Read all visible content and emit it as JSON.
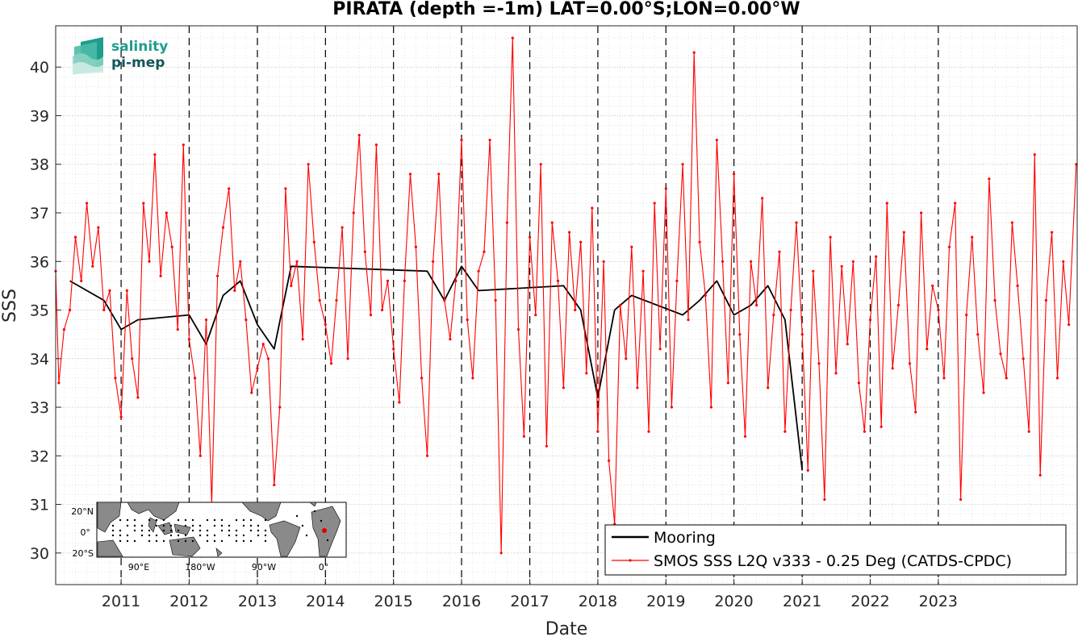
{
  "chart_data": {
    "type": "line",
    "title": "PIRATA (depth =-1m) LAT=0.00°S;LON=0.00°W",
    "xlabel": "Date",
    "ylabel": "SSS",
    "xlim": [
      "2010-01-15",
      "2025-01-15"
    ],
    "ylim": [
      29.35,
      40.85
    ],
    "y_ticks": [
      "30",
      "31",
      "32",
      "33",
      "34",
      "35",
      "36",
      "37",
      "38",
      "39",
      "40"
    ],
    "x_ticks": [
      "2011",
      "2012",
      "2013",
      "2014",
      "2015",
      "2016",
      "2017",
      "2018",
      "2019",
      "2020",
      "2021",
      "2022",
      "2023"
    ],
    "grid": true,
    "year_boundaries": "dashed black vertical lines at Jan 1 of each year 2011-2023",
    "legend_position": "bottom-right",
    "series": [
      {
        "name": "Mooring",
        "color": "#000000",
        "style": "line",
        "x": [
          "2010-04-01",
          "2010-07-01",
          "2010-10-01",
          "2011-01-01",
          "2011-04-01",
          "2012-01-01",
          "2012-04-01",
          "2012-07-01",
          "2012-10-01",
          "2013-01-01",
          "2013-04-01",
          "2013-07-01",
          "2015-07-01",
          "2015-10-01",
          "2016-01-01",
          "2016-04-01",
          "2017-07-01",
          "2017-10-01",
          "2018-01-01",
          "2018-04-01",
          "2018-07-01",
          "2019-04-01",
          "2019-07-01",
          "2019-10-01",
          "2020-01-01",
          "2020-04-01",
          "2020-07-01",
          "2020-10-01",
          "2021-01-01"
        ],
        "y": [
          35.6,
          35.4,
          35.2,
          34.6,
          34.8,
          34.9,
          34.3,
          35.3,
          35.6,
          34.7,
          34.2,
          35.9,
          35.8,
          35.2,
          35.9,
          35.4,
          35.5,
          35.0,
          33.2,
          35.0,
          35.3,
          34.9,
          35.2,
          35.6,
          34.9,
          35.1,
          35.5,
          34.8,
          31.7
        ]
      },
      {
        "name": "SMOS SSS L2Q v333 - 0.25 Deg (CATDS-CPDC)",
        "color": "#ff0000",
        "style": "line-with-dots",
        "x": [
          "2010-01-15",
          "2010-02-01",
          "2010-03-01",
          "2010-04-01",
          "2010-05-01",
          "2010-06-01",
          "2010-07-01",
          "2010-08-01",
          "2010-09-01",
          "2010-10-01",
          "2010-11-01",
          "2010-12-01",
          "2011-01-01",
          "2011-02-01",
          "2011-03-01",
          "2011-04-01",
          "2011-05-01",
          "2011-06-01",
          "2011-07-01",
          "2011-08-01",
          "2011-09-01",
          "2011-10-01",
          "2011-11-01",
          "2011-12-01",
          "2012-01-01",
          "2012-02-01",
          "2012-03-01",
          "2012-04-01",
          "2012-05-01",
          "2012-06-01",
          "2012-07-01",
          "2012-08-01",
          "2012-09-01",
          "2012-10-01",
          "2012-11-01",
          "2012-12-01",
          "2013-01-01",
          "2013-02-01",
          "2013-03-01",
          "2013-04-01",
          "2013-05-01",
          "2013-06-01",
          "2013-07-01",
          "2013-08-01",
          "2013-09-01",
          "2013-10-01",
          "2013-11-01",
          "2013-12-01",
          "2014-01-01",
          "2014-02-01",
          "2014-03-01",
          "2014-04-01",
          "2014-05-01",
          "2014-06-01",
          "2014-07-01",
          "2014-08-01",
          "2014-09-01",
          "2014-10-01",
          "2014-11-01",
          "2014-12-01",
          "2015-01-01",
          "2015-02-01",
          "2015-03-01",
          "2015-04-01",
          "2015-05-01",
          "2015-06-01",
          "2015-07-01",
          "2015-08-01",
          "2015-09-01",
          "2015-10-01",
          "2015-11-01",
          "2015-12-01",
          "2016-01-01",
          "2016-02-01",
          "2016-03-01",
          "2016-04-01",
          "2016-05-01",
          "2016-06-01",
          "2016-07-01",
          "2016-08-01",
          "2016-09-01",
          "2016-10-01",
          "2016-11-01",
          "2016-12-01",
          "2017-01-01",
          "2017-02-01",
          "2017-03-01",
          "2017-04-01",
          "2017-05-01",
          "2017-06-01",
          "2017-07-01",
          "2017-08-01",
          "2017-09-01",
          "2017-10-01",
          "2017-11-01",
          "2017-12-01",
          "2018-01-01",
          "2018-02-01",
          "2018-03-01",
          "2018-04-01",
          "2018-05-01",
          "2018-06-01",
          "2018-07-01",
          "2018-08-01",
          "2018-09-01",
          "2018-10-01",
          "2018-11-01",
          "2018-12-01",
          "2019-01-01",
          "2019-02-01",
          "2019-03-01",
          "2019-04-01",
          "2019-05-01",
          "2019-06-01",
          "2019-07-01",
          "2019-08-01",
          "2019-09-01",
          "2019-10-01",
          "2019-11-01",
          "2019-12-01",
          "2020-01-01",
          "2020-02-01",
          "2020-03-01",
          "2020-04-01",
          "2020-05-01",
          "2020-06-01",
          "2020-07-01",
          "2020-08-01",
          "2020-09-01",
          "2020-10-01",
          "2020-11-01",
          "2020-12-01",
          "2021-01-01",
          "2021-02-01",
          "2021-03-01",
          "2021-04-01",
          "2021-05-01",
          "2021-06-01",
          "2021-07-01",
          "2021-08-01",
          "2021-09-01",
          "2021-10-01",
          "2021-11-01",
          "2021-12-01",
          "2022-01-01",
          "2022-02-01",
          "2022-03-01",
          "2022-04-01",
          "2022-05-01",
          "2022-06-01",
          "2022-07-01",
          "2022-08-01",
          "2022-09-01",
          "2022-10-01",
          "2022-11-01",
          "2022-12-01",
          "2023-01-01",
          "2023-02-01",
          "2023-03-01",
          "2023-04-01",
          "2023-05-01",
          "2023-06-01",
          "2023-07-01",
          "2023-08-01",
          "2023-09-01",
          "2023-10-01",
          "2023-11-01",
          "2023-12-01",
          "2024-01-01",
          "2024-02-01",
          "2024-03-01",
          "2024-04-01",
          "2024-05-01",
          "2024-06-01",
          "2024-07-01",
          "2024-08-01",
          "2024-09-01",
          "2024-10-01",
          "2024-11-01",
          "2024-12-01",
          "2025-01-10"
        ],
        "y": [
          35.8,
          33.5,
          34.6,
          35.0,
          36.5,
          35.6,
          37.2,
          35.9,
          36.7,
          35.0,
          35.4,
          33.6,
          32.8,
          35.4,
          34.0,
          33.2,
          37.2,
          36.0,
          38.2,
          35.7,
          37.0,
          36.3,
          34.6,
          38.4,
          34.4,
          33.6,
          32.0,
          34.8,
          31.0,
          35.7,
          36.7,
          37.5,
          35.4,
          36.0,
          34.8,
          33.3,
          33.8,
          34.3,
          34.0,
          31.4,
          33.0,
          37.5,
          35.5,
          36.0,
          34.4,
          38.0,
          36.4,
          35.2,
          34.7,
          33.9,
          35.2,
          36.7,
          34.0,
          37.0,
          38.6,
          36.2,
          34.9,
          38.4,
          35.0,
          35.6,
          34.2,
          33.1,
          35.6,
          37.8,
          36.3,
          33.6,
          32.0,
          36.0,
          37.8,
          35.2,
          34.4,
          35.6,
          38.5,
          34.8,
          33.6,
          35.8,
          36.2,
          38.5,
          35.2,
          30.0,
          36.8,
          40.6,
          34.6,
          32.4,
          36.5,
          34.9,
          38.0,
          32.2,
          36.8,
          35.6,
          33.4,
          36.6,
          35.0,
          36.4,
          33.7,
          37.1,
          32.5,
          36.0,
          31.9,
          30.6,
          35.1,
          34.0,
          36.3,
          33.4,
          35.8,
          32.5,
          37.2,
          34.2,
          37.5,
          33.0,
          35.6,
          38.0,
          34.8,
          40.3,
          36.4,
          35.3,
          33.0,
          38.5,
          36.0,
          33.5,
          37.8,
          34.5,
          32.4,
          36.0,
          35.1,
          37.3,
          33.4,
          34.9,
          36.2,
          32.5,
          35.0,
          36.8,
          34.5,
          31.7,
          35.8,
          33.9,
          31.1,
          36.5,
          33.7,
          35.9,
          34.3,
          36.0,
          33.5,
          32.5,
          34.8,
          36.1,
          32.6,
          37.2,
          33.8,
          35.1,
          36.6,
          33.9,
          32.9,
          37.0,
          34.2,
          35.5,
          35.0,
          33.6,
          36.3,
          37.2,
          31.1,
          34.9,
          36.5,
          34.5,
          33.3,
          37.7,
          35.2,
          34.1,
          33.6,
          36.8,
          35.5,
          34.0,
          32.5,
          38.2,
          31.6,
          35.2,
          36.6,
          33.6,
          36.0,
          34.7,
          38.0
        ]
      }
    ]
  },
  "logo": {
    "line1": "salinity",
    "line2": "pi-mep"
  },
  "inset_map": {
    "y_labels": [
      "20°N",
      "0°",
      "20°S"
    ],
    "x_labels": [
      "90°E",
      "180°W",
      "90°W",
      "0°"
    ],
    "station_color": "#dd0000"
  }
}
